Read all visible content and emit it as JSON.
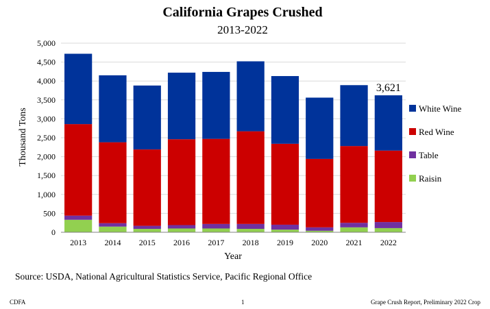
{
  "chart_data": {
    "type": "bar",
    "stacked": true,
    "title": "California Grapes Crushed",
    "subtitle": "2013-2022",
    "xlabel": "Year",
    "ylabel": "Thousand Tons",
    "ylim": [
      0,
      5000
    ],
    "yticks": [
      0,
      500,
      1000,
      1500,
      2000,
      2500,
      3000,
      3500,
      4000,
      4500,
      5000
    ],
    "ytick_labels": [
      "0",
      "500",
      "1,000",
      "1,500",
      "2,000",
      "2,500",
      "3,000",
      "3,500",
      "4,000",
      "4,500",
      "5,000"
    ],
    "grid": true,
    "legend_position": "right",
    "categories": [
      "2013",
      "2014",
      "2015",
      "2016",
      "2017",
      "2018",
      "2019",
      "2020",
      "2021",
      "2022"
    ],
    "series": [
      {
        "name": "Raisin",
        "color": "#92d050",
        "values": [
          330,
          150,
          90,
          100,
          100,
          90,
          70,
          40,
          130,
          110
        ]
      },
      {
        "name": "Table",
        "color": "#7030a0",
        "values": [
          110,
          90,
          80,
          90,
          120,
          130,
          130,
          90,
          120,
          160
        ]
      },
      {
        "name": "Red Wine",
        "color": "#cc0000",
        "values": [
          2420,
          2140,
          2020,
          2270,
          2250,
          2450,
          2140,
          1810,
          2030,
          1890
        ]
      },
      {
        "name": "White Wine",
        "color": "#00339a",
        "values": [
          1860,
          1770,
          1690,
          1760,
          1770,
          1850,
          1790,
          1620,
          1610,
          1461
        ]
      }
    ],
    "annotations": [
      {
        "category": "2022",
        "text": "3,621"
      }
    ]
  },
  "source": "Source: USDA, National Agricultural Statistics Service, Pacific Regional Office",
  "footer": {
    "left": "CDFA",
    "center": "1",
    "right": "Grape Crush Report, Preliminary 2022 Crop"
  }
}
